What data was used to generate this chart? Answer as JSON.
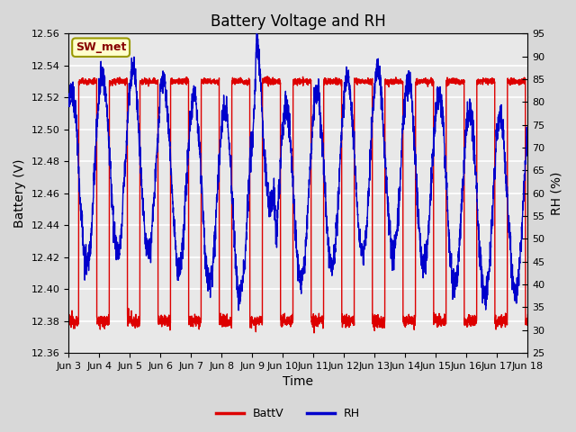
{
  "title": "Battery Voltage and RH",
  "xlabel": "Time",
  "ylabel_left": "Battery (V)",
  "ylabel_right": "RH (%)",
  "ylim_left": [
    12.36,
    12.56
  ],
  "ylim_right": [
    25,
    95
  ],
  "yticks_left": [
    12.36,
    12.38,
    12.4,
    12.42,
    12.44,
    12.46,
    12.48,
    12.5,
    12.52,
    12.54,
    12.56
  ],
  "yticks_right": [
    25,
    30,
    35,
    40,
    45,
    50,
    55,
    60,
    65,
    70,
    75,
    80,
    85,
    90,
    95
  ],
  "xtick_labels": [
    "Jun 3",
    "Jun 4",
    "Jun 5",
    "Jun 6",
    "Jun 7",
    "Jun 8",
    "Jun 9",
    "Jun 10",
    "Jun 11",
    "Jun 12",
    "Jun 13",
    "Jun 14",
    "Jun 15",
    "Jun 16",
    "Jun 17",
    "Jun 18"
  ],
  "legend_labels": [
    "BattV",
    "RH"
  ],
  "legend_colors": [
    "#dd0000",
    "#0000cc"
  ],
  "battv_color": "#dd0000",
  "rh_color": "#0000cc",
  "bg_color": "#d8d8d8",
  "plot_bg_color": "#e8e8e8",
  "station_label": "SW_met",
  "station_label_color": "#880000",
  "station_box_facecolor": "#ffffcc",
  "station_box_edgecolor": "#999900",
  "grid_color": "#ffffff",
  "title_fontsize": 12,
  "axis_label_fontsize": 10,
  "tick_fontsize": 8,
  "legend_fontsize": 9
}
